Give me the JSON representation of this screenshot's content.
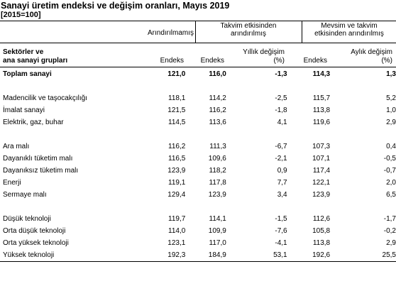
{
  "title": "Sanayi üretim endeksi  ve değişim oranları, Mayıs 2019",
  "subtitle": "[2015=100]",
  "headers": {
    "unadjusted": "Arındırılmamış",
    "calendar_adjusted_line1": "Takvim etkisinden",
    "calendar_adjusted_line2": "arındırılmış",
    "seasonal_adjusted_line1": "Mevsim ve takvim",
    "seasonal_adjusted_line2": "etkisinden arındırılmış",
    "sector_line1": "Sektörler ve",
    "sector_line2": "ana sanayi grupları",
    "index1": "Endeks",
    "index2": "Endeks",
    "annual_change_line1": "Yıllık değişim",
    "annual_change_line2": "(%)",
    "index3": "Endeks",
    "monthly_change_line1": "Aylık değişim",
    "monthly_change_line2": "(%)"
  },
  "groups": [
    {
      "rows": [
        {
          "label": "Toplam sanayi",
          "unadj": "121,0",
          "cal_index": "116,0",
          "annual": "-1,3",
          "sa_index": "114,3",
          "monthly": "1,3",
          "bold": true
        }
      ]
    },
    {
      "rows": [
        {
          "label": "Madencilik ve taşocakçılığı",
          "unadj": "118,1",
          "cal_index": "114,2",
          "annual": "-2,5",
          "sa_index": "115,7",
          "monthly": "5,2"
        },
        {
          "label": "İmalat sanayi",
          "unadj": "121,5",
          "cal_index": "116,2",
          "annual": "-1,8",
          "sa_index": "113,8",
          "monthly": "1,0"
        },
        {
          "label": "Elektrik, gaz, buhar",
          "unadj": "114,5",
          "cal_index": "113,6",
          "annual": "4,1",
          "sa_index": "119,6",
          "monthly": "2,9"
        }
      ]
    },
    {
      "rows": [
        {
          "label": "Ara malı",
          "unadj": "116,2",
          "cal_index": "111,3",
          "annual": "-6,7",
          "sa_index": "107,3",
          "monthly": "0,4"
        },
        {
          "label": "Dayanıklı tüketim malı",
          "unadj": "116,5",
          "cal_index": "109,6",
          "annual": "-2,1",
          "sa_index": "107,1",
          "monthly": "-0,5"
        },
        {
          "label": "Dayanıksız tüketim malı",
          "unadj": "123,9",
          "cal_index": "118,2",
          "annual": "0,9",
          "sa_index": "117,4",
          "monthly": "-0,7"
        },
        {
          "label": "Enerji",
          "unadj": "119,1",
          "cal_index": "117,8",
          "annual": "7,7",
          "sa_index": "122,1",
          "monthly": "2,0"
        },
        {
          "label": "Sermaye malı",
          "unadj": "129,4",
          "cal_index": "123,9",
          "annual": "3,4",
          "sa_index": "123,9",
          "monthly": "6,5"
        }
      ]
    },
    {
      "rows": [
        {
          "label": "Düşük teknoloji",
          "unadj": "119,7",
          "cal_index": "114,1",
          "annual": "-1,5",
          "sa_index": "112,6",
          "monthly": "-1,7"
        },
        {
          "label": "Orta düşük teknoloji",
          "unadj": "114,0",
          "cal_index": "109,9",
          "annual": "-7,6",
          "sa_index": "105,8",
          "monthly": "-0,2"
        },
        {
          "label": "Orta yüksek teknoloji",
          "unadj": "123,1",
          "cal_index": "117,0",
          "annual": "-4,1",
          "sa_index": "113,8",
          "monthly": "2,9"
        },
        {
          "label": "Yüksek teknoloji",
          "unadj": "192,3",
          "cal_index": "184,9",
          "annual": "53,1",
          "sa_index": "192,6",
          "monthly": "25,5"
        }
      ]
    }
  ]
}
